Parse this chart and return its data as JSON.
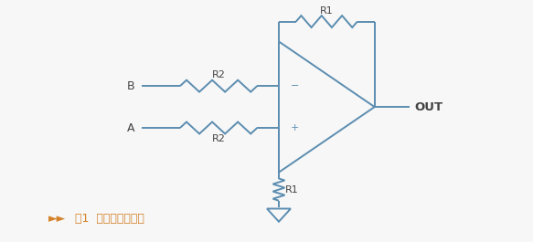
{
  "bg_color": "#f7f7f7",
  "line_color": "#5b8db0",
  "label_color": "#444444",
  "arrow_color": "#d4822a",
  "title_text": "图1  运算放大器电路",
  "arrow_prefix": "►►",
  "out_label": "OUT",
  "B_label": "B",
  "A_label": "A",
  "R1_top_label": "R1",
  "R2_B_label": "R2",
  "R2_A_label": "R2",
  "R1_bot_label": "R1",
  "minus_label": "−",
  "plus_label": "+",
  "lw": 1.4,
  "fig_w": 5.83,
  "fig_h": 2.65,
  "dpi": 100
}
